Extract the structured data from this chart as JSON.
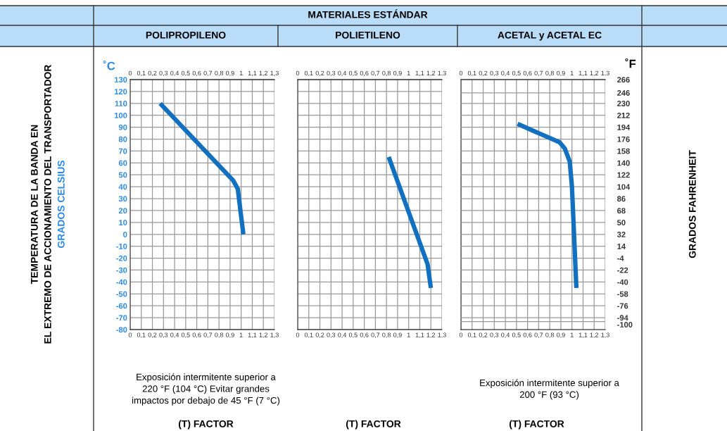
{
  "chart_data": [
    {
      "type": "line",
      "title": "POLIPROPILENO",
      "ylabel": "TEMPERATURA DE LA BANDA EN\nEL EXTREMO DE ACCIONAMIENTO DEL TRANSPORTADOR\nGRADOS CELSIUS",
      "xlabel": "(T) FACTOR",
      "annotations": [
        "˚C",
        "Exposición intermitente superior a\n220 °F (104 °C) Evitar grandes\nimpactos por debajo de 45 °F (7 °C)"
      ],
      "series": [
        {
          "color": "#1170c0",
          "x": [
            0.27,
            0.93,
            0.97,
            0.98,
            1.02
          ],
          "values": [
            110,
            45,
            38,
            30,
            0
          ]
        }
      ],
      "xlim": [
        0,
        1.3
      ],
      "xticks": [
        0,
        {
          "value": 0.1,
          "label": "0,1"
        },
        {
          "value": 0.2,
          "label": "0,2"
        },
        {
          "value": 0.3,
          "label": "0,3"
        },
        {
          "value": 0.4,
          "label": "0,4"
        },
        {
          "value": 0.5,
          "label": "0,5"
        },
        {
          "value": 0.6,
          "label": "0,6"
        },
        {
          "value": 0.7,
          "label": "0,7"
        },
        {
          "value": 0.8,
          "label": "0,8"
        },
        {
          "value": 0.9,
          "label": "0,9"
        },
        1,
        {
          "value": 1.1,
          "label": "1,1"
        },
        {
          "value": 1.2,
          "label": "1,2"
        },
        {
          "value": 1.3,
          "label": "1,3"
        }
      ],
      "x2lim": [
        0,
        1.3
      ],
      "x2ticks": [
        0,
        {
          "value": 0.1,
          "label": "0,1"
        },
        {
          "value": 0.2,
          "label": "0,2"
        },
        {
          "value": 0.3,
          "label": "0,3"
        },
        {
          "value": 0.4,
          "label": "0,4"
        },
        {
          "value": 0.5,
          "label": "0,5"
        },
        {
          "value": 0.6,
          "label": "0,6"
        },
        {
          "value": 0.7,
          "label": "0,7"
        },
        {
          "value": 0.8,
          "label": "0,8"
        },
        {
          "value": 0.9,
          "label": "0,9"
        },
        1,
        {
          "value": 1.1,
          "label": "1,1"
        },
        {
          "value": 1.2,
          "label": "1,2"
        },
        {
          "value": 1.3,
          "label": "1,3"
        }
      ],
      "ylim": [
        -80,
        130
      ],
      "yticks": [
        -80,
        -70,
        -60,
        -50,
        -40,
        -30,
        -20,
        -10,
        0,
        10,
        20,
        30,
        40,
        50,
        60,
        70,
        80,
        90,
        100,
        110,
        120,
        130
      ],
      "grid": true
    },
    {
      "type": "line",
      "title": "POLIETILENO",
      "subtitle": "MATERIALES ESTÁNDAR",
      "xlabel": "(T) FACTOR",
      "series": [
        {
          "color": "#1170c0",
          "x": [
            0.82,
            1.17,
            1.2
          ],
          "values": [
            65,
            -25,
            -45
          ]
        }
      ],
      "xlim": [
        0,
        1.3
      ],
      "xticks": [
        0,
        {
          "value": 0.1,
          "label": "0,1"
        },
        {
          "value": 0.2,
          "label": "0,2"
        },
        {
          "value": 0.3,
          "label": "0,3"
        },
        {
          "value": 0.4,
          "label": "0,4"
        },
        {
          "value": 0.5,
          "label": "0,5"
        },
        {
          "value": 0.6,
          "label": "0,6"
        },
        {
          "value": 0.7,
          "label": "0,7"
        },
        {
          "value": 0.8,
          "label": "0,8"
        },
        {
          "value": 0.9,
          "label": "0,9"
        },
        1,
        {
          "value": 1.1,
          "label": "1,1"
        },
        {
          "value": 1.2,
          "label": "1,2"
        },
        {
          "value": 1.3,
          "label": "1,3"
        }
      ],
      "x2lim": [
        0,
        1.3
      ],
      "x2ticks": [
        0,
        {
          "value": 0.1,
          "label": "0,1"
        },
        {
          "value": 0.2,
          "label": "0,2"
        },
        {
          "value": 0.3,
          "label": "0,3"
        },
        {
          "value": 0.4,
          "label": "0,4"
        },
        {
          "value": 0.5,
          "label": "0,5"
        },
        {
          "value": 0.6,
          "label": "0,6"
        },
        {
          "value": 0.7,
          "label": "0,7"
        },
        {
          "value": 0.8,
          "label": "0,8"
        },
        {
          "value": 0.9,
          "label": "0,9"
        },
        1,
        {
          "value": 1.1,
          "label": "1,1"
        },
        {
          "value": 1.2,
          "label": "1,2"
        },
        {
          "value": 1.3,
          "label": "1,3"
        }
      ],
      "ylim": [
        -80,
        130
      ],
      "yticks": [
        -80,
        -70,
        -60,
        -50,
        -40,
        -30,
        -20,
        -10,
        0,
        10,
        20,
        30,
        40,
        50,
        60,
        70,
        80,
        90,
        100,
        110,
        120,
        130
      ],
      "grid": true,
      "tick_labels": "x"
    },
    {
      "type": "line",
      "title": "ACETAL y ACETAL EC",
      "xlabel": "(T) FACTOR",
      "y2label": "GRADOS FAHRENHEIT",
      "annotations": [
        "˚F",
        "Exposición intermitente superior a\n200 °F (93 °C)"
      ],
      "series": [
        {
          "color": "#1170c0",
          "axis": "y2",
          "x": [
            0.51,
            0.89,
            0.935,
            0.98,
            1.0,
            1.04
          ],
          "values": [
            199,
            171,
            162,
            142,
            104,
            -49
          ]
        }
      ],
      "xlim": [
        0,
        1.3
      ],
      "xticks": [
        0,
        {
          "value": 0.1,
          "label": "0,1"
        },
        {
          "value": 0.2,
          "label": "0,2"
        },
        {
          "value": 0.3,
          "label": "0,3"
        },
        {
          "value": 0.4,
          "label": "0,4"
        },
        {
          "value": 0.5,
          "label": "0,5"
        },
        {
          "value": 0.6,
          "label": "0,6"
        },
        {
          "value": 0.7,
          "label": "0,7"
        },
        {
          "value": 0.8,
          "label": "0,8"
        },
        {
          "value": 0.9,
          "label": "0,9"
        },
        1,
        {
          "value": 1.1,
          "label": "1,1"
        },
        {
          "value": 1.2,
          "label": "1,2"
        },
        {
          "value": 1.3,
          "label": "1,3"
        }
      ],
      "x2lim": [
        0,
        1.3
      ],
      "x2ticks": [
        0,
        {
          "value": 0.1,
          "label": "0,1"
        },
        {
          "value": 0.2,
          "label": "0,2"
        },
        {
          "value": 0.3,
          "label": "0,3"
        },
        {
          "value": 0.4,
          "label": "0,4"
        },
        {
          "value": 0.5,
          "label": "0,5"
        },
        {
          "value": 0.6,
          "label": "0,6"
        },
        {
          "value": 0.7,
          "label": "0,7"
        },
        {
          "value": 0.8,
          "label": "0,8"
        },
        {
          "value": 0.9,
          "label": "0,9"
        },
        1,
        {
          "value": 1.1,
          "label": "1,1"
        },
        {
          "value": 1.2,
          "label": "1,2"
        },
        {
          "value": 1.3,
          "label": "1,3"
        }
      ],
      "y2lim": [
        -112,
        266
      ],
      "y2ticks": [
        -100,
        -94,
        -76,
        -58,
        -40,
        -22,
        -4,
        14,
        32,
        50,
        68,
        86,
        104,
        122,
        140,
        158,
        176,
        194,
        212,
        230,
        246,
        266
      ],
      "grid": true
    }
  ]
}
